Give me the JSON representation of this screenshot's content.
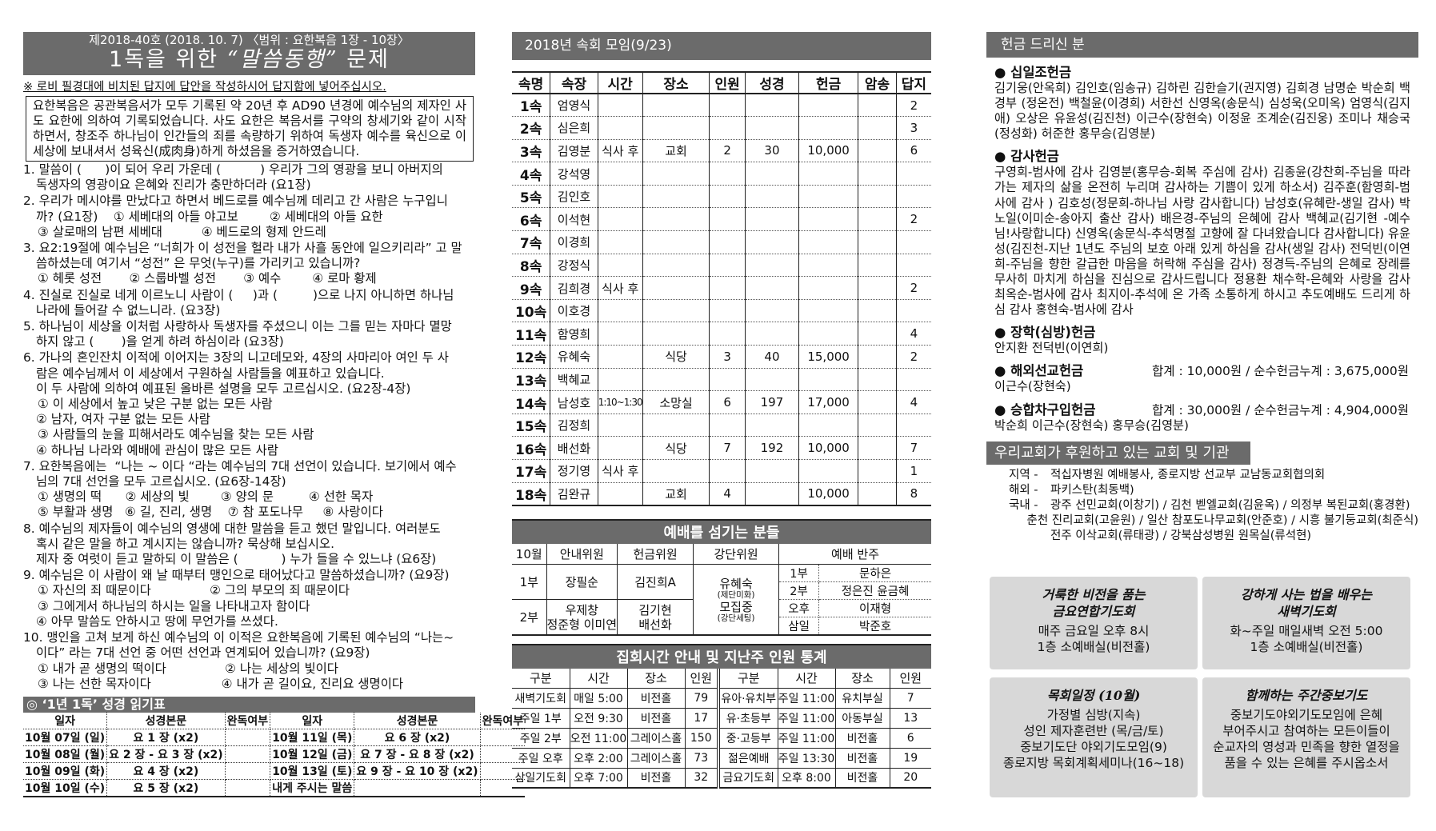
{
  "left": {
    "issue": "제2018-40호   (2018. 10. 7) 〈범위 : 요한복음 1장 - 10장〉",
    "title_a": "1독을 위한 ",
    "title_b": "“말씀동행”",
    "title_c": " 문제",
    "note": "※ 로비 필경대에 비치된 답지에 답안을 작성하시어 답지함에 넣어주십시오.",
    "intro": "요한복음은 공관복음서가 모두 기록된 약 20년 후 AD90 년경에 예수님의 제자인 사도 요한에 의하여 기록되었습니다. 사도 요한은 복음서를 구약의 창세기와 같이 시작하면서, 창조주 하나님이 인간들의 죄를 속량하기 위하여 독생자 예수를 육신으로 이 세상에 보내셔서 성육신(成肉身)하게 하셨음을 증거하였습니다.",
    "questions": [
      {
        "lines": [
          "1. 말씀이 (      )이 되어 우리 가운데 (          ) 우리가 그의 영광을 보니 아버지의",
          "독생자의 영광이요 은혜와 진리가 충만하더라 (요1장)"
        ]
      },
      {
        "lines": [
          "2. 우리가 메시야를 만났다고 하면서 베드로를 예수님께 데리고 간 사람은 누구입니",
          "까? (요1장)    ① 세베대의 아들 야고보        ② 세베대의 아들 요한",
          "③ 살로매의 남편 세베대          ④ 베드로의 형제 안드레"
        ]
      },
      {
        "lines": [
          "3. 요2:19절에 예수님은 “너희가 이 성전을 헐라 내가 사흘 동안에 일으키리라” 고 말",
          "씀하셨는데 여기서 “성전” 은 무엇(누구)를 가리키고 있습니까?",
          "① 헤롯 성전       ② 스룹바벨 성전       ③ 예수        ④ 로마 황제"
        ]
      },
      {
        "lines": [
          "4. 진실로 진실로 네게 이르노니 사람이 (     )과 (         )으로 나지 아니하면 하나님",
          "나라에 들어갈 수 없느니라. (요3장)"
        ]
      },
      {
        "lines": [
          "5. 하나님이 세상을 이처럼 사랑하사 독생자를 주셨으니 이는 그를 믿는 자마다 멸망",
          "하지 않고 (       )을 얻게 하려 하심이라 (요3장)"
        ]
      },
      {
        "lines": [
          "6. 가나의 혼인잔치 이적에 이어지는 3장의 니고데모와, 4장의 사마리아 여인 두 사",
          "람은 예수님께서 이 세상에서 구원하실 사람들을 예표하고 있습니다.",
          "이 두 사람에 의하여 예표된 올바른 설명을 모두 고르십시오. (요2장-4장)",
          "① 이 세상에서 높고 낮은 구분 없는 모든 사람",
          "② 남자, 여자 구분 없는 모든 사람",
          "③ 사람들의 눈을 피해서라도 예수님을 찾는 모든 사람",
          "④ 하나님 나라와 예배에 관심이 많은 모든 사람"
        ]
      },
      {
        "lines": [
          "7. 요한복음에는  “나는 ~ 이다 “라는 예수님의 7대 선언이 있습니다. 보기에서 예수",
          "님의 7대 선언을 모두 고르십시오. (요6장-14장)",
          "① 생명의 떡      ② 세상의 빛        ③ 양의 문         ④ 선한 목자",
          "⑤ 부활과 생명   ⑥ 길, 진리, 생명    ⑦ 참 포도나무     ⑧ 사랑이다"
        ]
      },
      {
        "lines": [
          "8. 예수님의 제자들이 예수님의 영생에 대한 말씀을 듣고 했던 말입니다. 여러분도",
          "혹시 같은 말을 하고 계시지는 않습니까? 묵상해 보십시오.",
          "제자 중 여럿이 듣고 말하되 이 말씀은 (           ) 누가 들을 수 있느냐 (요6장)"
        ]
      },
      {
        "lines": [
          "9. 예수님은 이 사람이 왜 날 때부터 맹인으로 태어났다고 말씀하셨습니까? (요9장)",
          "① 자신의 죄 때문이다               ② 그의 부모의 죄 때문이다",
          "③ 그에게서 하나님의 하시는 일을 나타내고자 함이다",
          "④ 아무 말씀도 안하시고 땅에 무언가를 쓰셨다."
        ]
      },
      {
        "lines": [
          "10. 맹인을 고쳐 보게 하신 예수님의 이 이적은 요한복음에 기록된 예수님의 “나는~",
          "이다” 라는 7대 선언 중 어떤 선언과 연계되어 있습니까? (요9장)",
          "① 내가 곧 생명의 떡이다               ② 나는 세상의 빛이다",
          "③ 나는 선한 목자이다                  ④ 내가 곧 길이요, 진리요 생명이다"
        ]
      }
    ],
    "reading_title": "◎  ‘1년 1독’   성경 읽기표",
    "reading_headers": [
      "일자",
      "성경본문",
      "완독여부",
      "일자",
      "성경본문",
      "완독여부"
    ],
    "reading_rows": [
      [
        "10월 07일 (일)",
        "요 1 장  (x2)",
        "",
        "10월 11일 (목)",
        "요 6 장   (x2)",
        ""
      ],
      [
        "10월 08일 (월)",
        "요 2 장 - 요 3 장 (x2)",
        "",
        "10월 12일 (금)",
        "요 7 장 - 요 8 장 (x2)",
        ""
      ],
      [
        "10월 09일 (화)",
        "요 4 장  (x2)",
        "",
        "10월 13일 (토)",
        "요 9 장 - 요 10 장 (x2)",
        ""
      ],
      [
        "10월 10일 (수)",
        "요 5 장  (x2)",
        "",
        "내게 주시는 말씀",
        "",
        ""
      ]
    ]
  },
  "mid": {
    "title": "2018년 속회 모임(9/23)",
    "sok_headers": [
      "속명",
      "속장",
      "시간",
      "장소",
      "인원",
      "성경",
      "헌금",
      "암송",
      "답지"
    ],
    "sok_rows": [
      [
        "1속",
        "엄영식",
        "",
        "",
        "",
        "",
        "",
        "",
        "2"
      ],
      [
        "2속",
        "심은희",
        "",
        "",
        "",
        "",
        "",
        "",
        "3"
      ],
      [
        "3속",
        "김영분",
        "식사 후",
        "교회",
        "2",
        "30",
        "10,000",
        "",
        "6"
      ],
      [
        "4속",
        "강석영",
        "",
        "",
        "",
        "",
        "",
        "",
        ""
      ],
      [
        "5속",
        "김인호",
        "",
        "",
        "",
        "",
        "",
        "",
        ""
      ],
      [
        "6속",
        "이석현",
        "",
        "",
        "",
        "",
        "",
        "",
        "2"
      ],
      [
        "7속",
        "이경희",
        "",
        "",
        "",
        "",
        "",
        "",
        ""
      ],
      [
        "8속",
        "강정식",
        "",
        "",
        "",
        "",
        "",
        "",
        ""
      ],
      [
        "9속",
        "김희경",
        "식사 후",
        "",
        "",
        "",
        "",
        "",
        "2"
      ],
      [
        "10속",
        "이호경",
        "",
        "",
        "",
        "",
        "",
        "",
        ""
      ],
      [
        "11속",
        "함영희",
        "",
        "",
        "",
        "",
        "",
        "",
        "4"
      ],
      [
        "12속",
        "유혜숙",
        "",
        "식당",
        "3",
        "40",
        "15,000",
        "",
        "2"
      ],
      [
        "13속",
        "백혜교",
        "",
        "",
        "",
        "",
        "",
        "",
        ""
      ],
      [
        "14속",
        "남성호",
        "1:10~1:30",
        "소망실",
        "6",
        "197",
        "17,000",
        "",
        "4"
      ],
      [
        "15속",
        "김정희",
        "",
        "",
        "",
        "",
        "",
        "",
        ""
      ],
      [
        "16속",
        "배선화",
        "",
        "식당",
        "7",
        "192",
        "10,000",
        "",
        "7"
      ],
      [
        "17속",
        "정기영",
        "식사 후",
        "",
        "",
        "",
        "",
        "",
        "1"
      ],
      [
        "18속",
        "김완규",
        "",
        "교회",
        "4",
        "",
        "10,000",
        "",
        "8"
      ]
    ],
    "worship_title": "예배를 섬기는 분들",
    "worship": {
      "h_month": "10월",
      "h_guide": "안내위원",
      "h_offering": "헌금위원",
      "h_altar": "강단위원",
      "h_accomp": "예배 반주",
      "s1": "1부",
      "s1_guide": "장필순",
      "s1_offering": "김진희A",
      "s2": "2부",
      "s2_guide_a": "우제창",
      "s2_guide_b": "정준형 이미연",
      "s2_offering_a": "김기현",
      "s2_offering_b": "배선화",
      "altar_a": "유혜숙",
      "altar_a_note": "(제단미화)",
      "altar_b": "모집중",
      "altar_b_note": "(강단세팅)",
      "accomp": [
        [
          "1부",
          "문하은"
        ],
        [
          "2부",
          "정은진 윤금혜"
        ],
        [
          "오후",
          "이재형"
        ],
        [
          "삼일",
          "박준호"
        ]
      ]
    },
    "att_title": "집회시간 안내 및 지난주 인원 통계",
    "att_headers": [
      "구분",
      "시간",
      "장소",
      "인원",
      "구분",
      "시간",
      "장소",
      "인원"
    ],
    "att_rows": [
      [
        "새벽기도회",
        "매일 5:00",
        "비전홀",
        "79",
        "유아·유치부",
        "주일 11:00",
        "유치부실",
        "7"
      ],
      [
        "주일 1부",
        "오전 9:30",
        "비전홀",
        "17",
        "유·초등부",
        "주일 11:00",
        "아동부실",
        "13"
      ],
      [
        "주일 2부",
        "오전 11:00",
        "그레이스홀",
        "150",
        "중·고등부",
        "주일 11:00",
        "비전홀",
        "6"
      ],
      [
        "주일 오후",
        "오후 2:00",
        "그레이스홀",
        "73",
        "젊은예배",
        "주일 13:30",
        "비전홀",
        "19"
      ],
      [
        "삼일기도회",
        "오후 7:00",
        "비전홀",
        "32",
        "금요기도회",
        "오후 8:00",
        "비전홀",
        "20"
      ]
    ]
  },
  "right": {
    "title": "헌금 드리신 분",
    "sections": [
      {
        "title": "● 십일조헌금",
        "sum": "",
        "text": "김기웅(안옥희) 김인호(임송규) 김하린 김한슬기(권지영) 김희경 남명순 박순희 백경부 (정온전) 백철윤(이경희) 서한선 신영옥(송문식) 심성욱(오미옥) 엄영식(김지애) 오상은 유윤성(김진천) 이근수(장현숙) 이정윤 조계순(김진웅) 조미나 채승국(정성화) 허준한 홍무승(김영분)"
      },
      {
        "title": "● 감사헌금",
        "sum": "",
        "text": "구영희-범사에 감사 김영분(홍무승-회복 주심에 감사) 김종윤(강찬희-주님을 따라가는 제자의 삶을 온전히 누리며 감사하는 기쁨이 있게 하소서) 김주훈(함영희-범사에 감사 ) 김호성(정문희-하나님 사랑 감사합니다) 남성호(유혜란-생일 감사) 박노일(이미순-송아지 출산 감사) 배은경-주님의 은혜에 감사 백혜교(김기현 -예수님!사랑합니다) 신영옥(송문식-추석명절 고향에 잘 다녀왔습니다 감사합니다) 유윤성(김진천-지난 1년도 주님의 보호 아래 있게 하심을 감사(생일 감사) 전덕빈(이연희-주님을 향한 갈급한 마음을 허락해 주심을 감사) 정경득-주님의 은혜로 장례를 무사히 마치게 하심을 진심으로 감사드립니다 정용환 채수학-은혜와 사랑을 감사 최옥순-범사에 감사 최지이-추석에 온 가족 소통하게 하시고 추도예배도 드리게 하심 감사 홍현숙-범사에 감사"
      },
      {
        "title": "● 장학(심방)헌금",
        "sum": "",
        "text": "안지환 전덕빈(이연희)"
      },
      {
        "title": "● 해외선교헌금",
        "sum": "합계 :  10,000원 / 순수헌금누계 : 3,675,000원",
        "text": "이근수(장현숙)"
      },
      {
        "title": "● 승합차구입헌금",
        "sum": "합계 :  30,000원 / 순수헌금누계 : 4,904,000원",
        "text": "박순희 이근수(장현숙) 홍무승(김영분)"
      }
    ],
    "support_title": "우리교회가 후원하고 있는 교회 및 기관",
    "support": [
      {
        "k": "지역 -",
        "v": [
          "적십자병원 예배봉사, 종로지방 선교부 교남동교회협의회"
        ]
      },
      {
        "k": "해외 -",
        "v": [
          "파키스탄(최동백)"
        ]
      },
      {
        "k": "국내 -",
        "v": [
          "광주 선민교회(이창기) / 김천 벧엘교회(김윤옥) / 의정부 복된교회(홍경환)",
          "춘천 진리교회(고윤원) / 일산 참포도나무교회(안준호) / 시흥 불기둥교회(최준식)",
          "전주 이삭교회(류태광) / 강북삼성병원 원목실(류석현)"
        ]
      }
    ],
    "boxes": [
      {
        "title": [
          "거룩한 비전을 품는",
          "금요연합기도회"
        ],
        "lines": [
          "매주 금요일 오후 8시",
          "1층 소예배실(비전홀)"
        ]
      },
      {
        "title": [
          "강하게 사는 법을 배우는",
          "새벽기도회"
        ],
        "lines": [
          "화~주일 매일새벽 오전 5:00",
          "1층 소예배실(비전홀)"
        ]
      },
      {
        "title": [
          "목회일정 (10월)"
        ],
        "lines": [
          "가정별 심방(지속)",
          "성인 제자훈련반 (목/금/토)",
          "중보기도단 야외기도모임(9)",
          "종로지방 목회계획세미나(16~18)"
        ]
      },
      {
        "title": [
          "함께하는 주간중보기도"
        ],
        "lines": [
          "중보기도야외기도모임에 은혜",
          "부어주시고 참여하는 모든이들이",
          "순교자의 영성과 민족을 향한 열정을",
          "품을 수 있는 은혜를 주시옵소서"
        ]
      }
    ]
  }
}
